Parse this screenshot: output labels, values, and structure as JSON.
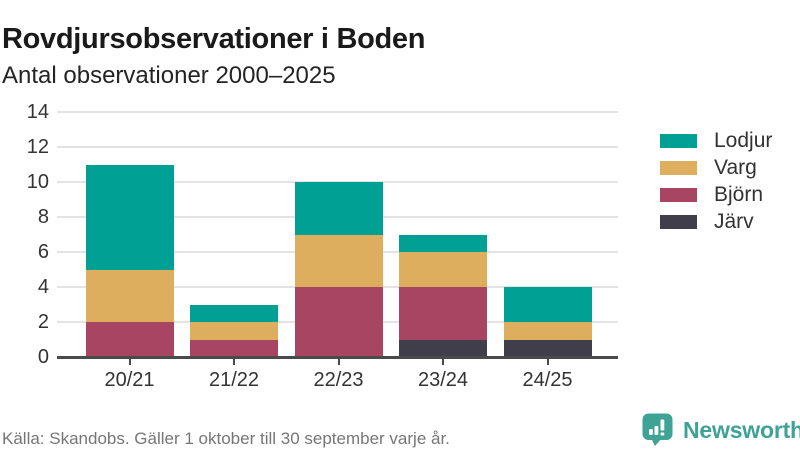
{
  "header": {
    "title": "Rovdjursobservationer i Boden",
    "subtitle": "Antal observationer 2000–2025"
  },
  "chart_data": {
    "type": "bar",
    "stacked": true,
    "title": "Rovdjursobservationer i Boden",
    "subtitle": "Antal observationer 2000–2025",
    "categories": [
      "20/21",
      "21/22",
      "22/23",
      "23/24",
      "24/25"
    ],
    "series": [
      {
        "name": "Lodjur",
        "color": "#00A194",
        "values": [
          6,
          1,
          3,
          1,
          2
        ]
      },
      {
        "name": "Varg",
        "color": "#DCAE5D",
        "values": [
          3,
          1,
          3,
          2,
          1
        ]
      },
      {
        "name": "Björn",
        "color": "#A74563",
        "values": [
          2,
          1,
          4,
          3,
          0
        ]
      },
      {
        "name": "Järv",
        "color": "#413E4B",
        "values": [
          0,
          0,
          0,
          1,
          1
        ]
      }
    ],
    "stack_order_bottom_to_top": [
      "Järv",
      "Björn",
      "Varg",
      "Lodjur"
    ],
    "totals": [
      11,
      3,
      10,
      7,
      4
    ],
    "xlabel": "",
    "ylabel": "",
    "ylim": [
      0,
      14
    ],
    "yticks": [
      0,
      2,
      4,
      6,
      8,
      10,
      12,
      14
    ],
    "grid": "horizontal",
    "legend_position": "right"
  },
  "footer": {
    "source": "Källa: Skandobs. Gäller 1 oktober till 30 september varje år.",
    "brand": "Newsworthy"
  },
  "colors": {
    "background": "#FFFFFF",
    "axis": "#4A4A4A",
    "grid": "#E3E3E3",
    "tick_label": "#333333",
    "title": "#1A1A1A",
    "subtitle": "#242424",
    "source_text": "#767676",
    "brand_teal": "#3EA294"
  }
}
